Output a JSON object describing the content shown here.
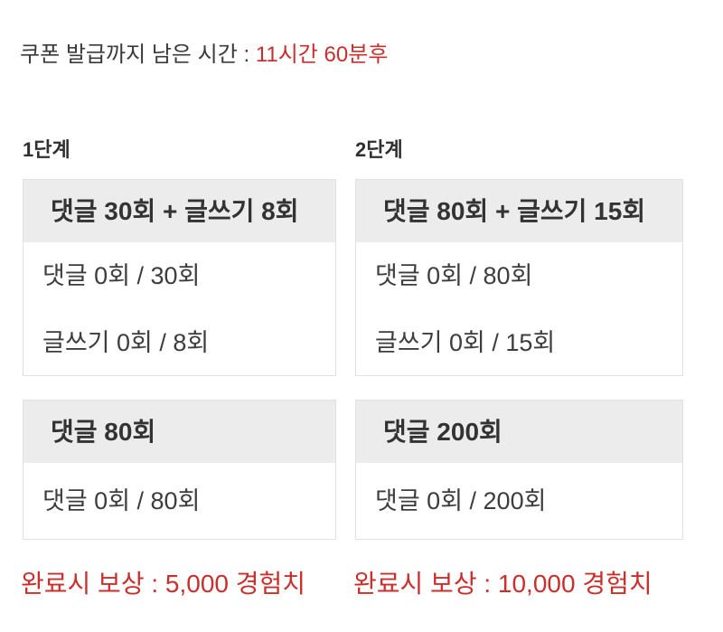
{
  "colors": {
    "accent_red": "#c9302c",
    "text_dark": "#333333",
    "card_header_bg": "#ececec",
    "card_border": "#e1e1e1",
    "page_bg": "#ffffff"
  },
  "countdown": {
    "label": "쿠폰 발급까지 남은 시간 : ",
    "value": "11시간 60분후"
  },
  "stages": [
    {
      "label": "1단계",
      "cards": [
        {
          "title": "댓글 30회 + 글쓰기 8회",
          "rows": [
            "댓글 0회 / 30회",
            "글쓰기 0회 / 8회"
          ]
        },
        {
          "title": "댓글 80회",
          "rows": [
            "댓글 0회 / 80회"
          ]
        }
      ],
      "reward": "완료시 보상 : 5,000 경험치"
    },
    {
      "label": "2단계",
      "cards": [
        {
          "title": "댓글 80회 + 글쓰기 15회",
          "rows": [
            "댓글 0회 / 80회",
            "글쓰기 0회 / 15회"
          ]
        },
        {
          "title": "댓글 200회",
          "rows": [
            "댓글 0회 / 200회"
          ]
        }
      ],
      "reward": "완료시 보상 : 10,000 경험치"
    }
  ]
}
